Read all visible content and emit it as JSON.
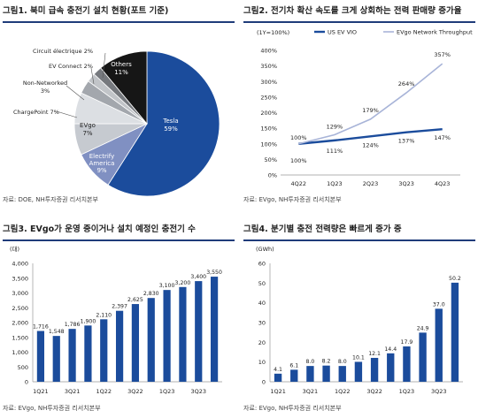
{
  "panels": [
    {
      "title": "그림1. 북미 급속 충전기 설치 현황(포트 기준)",
      "source": "자료: DOE, NH투자증권 리서치본부"
    },
    {
      "title": "그림2. 전기차 확산 속도를 크게 상회하는 전력 판매량 증가율",
      "source": "자료: EVgo, NH투자증권 리서치본부"
    },
    {
      "title": "그림3. EVgo가 운영 중이거나 설치 예정인 충전기 수",
      "source": "자료: EVgo, NH투자증권 리서치본부"
    },
    {
      "title": "그림4. 분기별 충전 전력량은 빠르게 증가 중",
      "source": "자료: EVgo, NH투자증권 리서치본부"
    }
  ],
  "chart_data": [
    {
      "type": "pie",
      "slices": [
        {
          "label": "Tesla",
          "value": 59,
          "display": "59%",
          "color": "#1b4c9c"
        },
        {
          "label": "Electrify America",
          "value": 9,
          "display": "9%",
          "color": "#8090c2"
        },
        {
          "label": "EVgo",
          "value": 7,
          "display": "7%",
          "color": "#c6cad0"
        },
        {
          "label": "ChargePoint",
          "value": 7,
          "display": "7%",
          "color": "#dcdfe3"
        },
        {
          "label": "Non-Networked",
          "value": 3,
          "display": "3%",
          "color": "#a3a7ad"
        },
        {
          "label": "EV Connect",
          "value": 2,
          "display": "2%",
          "color": "#c1c4c8"
        },
        {
          "label": "Circuit électrique",
          "value": 2,
          "display": "2%",
          "color": "#76797e"
        },
        {
          "label": "Others",
          "value": 11,
          "display": "11%",
          "color": "#161616"
        }
      ]
    },
    {
      "type": "line",
      "unit": "(1Y=100%)",
      "categories": [
        "4Q22",
        "1Q23",
        "2Q23",
        "3Q23",
        "4Q23"
      ],
      "ylim": [
        0,
        400
      ],
      "yticks": [
        "0%",
        "50%",
        "100%",
        "150%",
        "200%",
        "250%",
        "300%",
        "350%",
        "400%"
      ],
      "series": [
        {
          "name": "US EV VIO",
          "values": [
            100,
            111,
            124,
            137,
            147
          ],
          "labels": [
            "100%",
            "111%",
            "124%",
            "137%",
            "147%"
          ],
          "color": "#1b4c9c"
        },
        {
          "name": "EVgo Network Throughput",
          "values": [
            100,
            129,
            179,
            264,
            357
          ],
          "labels": [
            "100%",
            "129%",
            "179%",
            "264%",
            "357%"
          ],
          "color": "#a8b4d8"
        }
      ]
    },
    {
      "type": "bar",
      "unit": "(대)",
      "ylim": [
        0,
        4000
      ],
      "yticks": [
        "0",
        "500",
        "1,000",
        "1,500",
        "2,000",
        "2,500",
        "3,000",
        "3,500",
        "4,000"
      ],
      "values": [
        1716,
        1548,
        1786,
        1900,
        2110,
        2397,
        2625,
        2830,
        3100,
        3200,
        3400,
        3550
      ],
      "labels": [
        "1,716",
        "1,548",
        "1,786",
        "1,900",
        "2,110",
        "2,397",
        "2,625",
        "2,830",
        "3,100",
        "3,200",
        "3,400",
        "3,550"
      ],
      "xticks": [
        "1Q21",
        "3Q21",
        "1Q22",
        "3Q22",
        "1Q23",
        "3Q23"
      ],
      "color": "#1b4c9c"
    },
    {
      "type": "bar",
      "unit": "(GWh)",
      "ylim": [
        0,
        60
      ],
      "yticks": [
        "0",
        "10",
        "20",
        "30",
        "40",
        "50",
        "60"
      ],
      "values": [
        4.1,
        6.1,
        8.0,
        8.2,
        8.0,
        10.1,
        12.1,
        14.4,
        17.9,
        24.9,
        37.0,
        50.2
      ],
      "labels": [
        "4.1",
        "6.1",
        "8.0",
        "8.2",
        "8.0",
        "10.1",
        "12.1",
        "14.4",
        "17.9",
        "24.9",
        "37.0",
        "50.2"
      ],
      "xticks": [
        "1Q21",
        "3Q21",
        "1Q22",
        "3Q22",
        "1Q23",
        "3Q23"
      ],
      "color": "#1b4c9c"
    }
  ]
}
